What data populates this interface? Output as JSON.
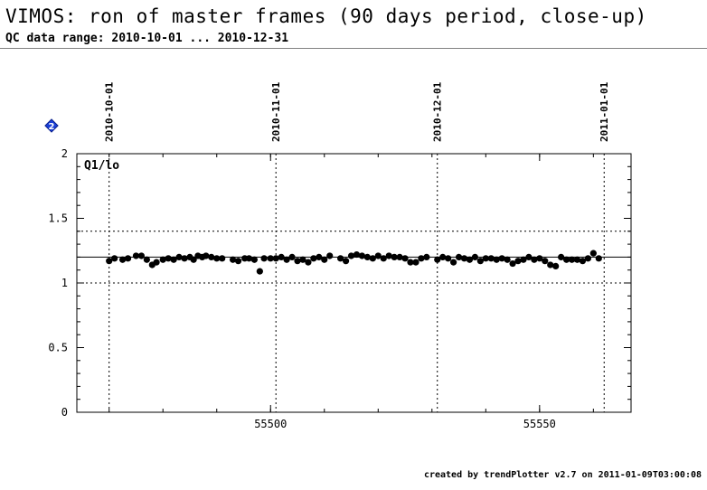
{
  "header": {
    "title": "VIMOS: ron of master frames (90 days period, close-up)",
    "subtitle": "QC data range: 2010-10-01 ... 2010-12-31"
  },
  "footer": {
    "text": "created by trendPlotter v2.7 on 2011-01-09T03:00:08"
  },
  "badge": {
    "label": "2",
    "color": "#1a3fd6"
  },
  "chart_data": {
    "type": "scatter",
    "panel_label": "Q1/lo",
    "xlim": [
      55464,
      55567
    ],
    "ylim": [
      0,
      2
    ],
    "x_ticks": [
      55500,
      55550
    ],
    "x_minor_step": 10,
    "y_ticks": [
      0,
      0.5,
      1,
      1.5,
      2
    ],
    "y_tick_labels": [
      "0",
      "0.5",
      "1",
      "1.5",
      "2"
    ],
    "y_minor_step": 0.1,
    "date_markers": [
      {
        "mjd": 55470,
        "label": "2010-10-01"
      },
      {
        "mjd": 55501,
        "label": "2010-11-01"
      },
      {
        "mjd": 55531,
        "label": "2010-12-01"
      },
      {
        "mjd": 55562,
        "label": "2011-01-01"
      }
    ],
    "reference_line": 1.2,
    "threshold_lines": [
      1.0,
      1.4
    ],
    "points": {
      "x": [
        55470,
        55471,
        55472.5,
        55473.5,
        55475,
        55476,
        55477,
        55478,
        55478.8,
        55480,
        55481,
        55482,
        55483,
        55484,
        55485,
        55485.7,
        55486.5,
        55487.3,
        55488,
        55489,
        55490,
        55491,
        55493,
        55494,
        55495.2,
        55496,
        55497,
        55498,
        55498.8,
        55500,
        55501,
        55502,
        55503,
        55504,
        55505,
        55506,
        55507,
        55508,
        55509,
        55510,
        55511,
        55513,
        55514,
        55515,
        55516,
        55517,
        55518,
        55519,
        55520,
        55521,
        55522,
        55523,
        55524,
        55525,
        55526,
        55527,
        55528,
        55529,
        55531,
        55532,
        55533,
        55534,
        55535,
        55536,
        55537,
        55538,
        55539,
        55540,
        55541,
        55542,
        55543,
        55544,
        55545,
        55546,
        55547,
        55548,
        55549,
        55550,
        55551,
        55552,
        55553,
        55554,
        55555,
        55556,
        55557,
        55558,
        55559,
        55560,
        55561
      ],
      "y": [
        1.17,
        1.19,
        1.18,
        1.19,
        1.21,
        1.21,
        1.18,
        1.14,
        1.16,
        1.18,
        1.19,
        1.18,
        1.2,
        1.19,
        1.2,
        1.18,
        1.21,
        1.2,
        1.21,
        1.2,
        1.19,
        1.19,
        1.18,
        1.17,
        1.19,
        1.19,
        1.18,
        1.09,
        1.19,
        1.19,
        1.19,
        1.2,
        1.18,
        1.2,
        1.17,
        1.18,
        1.16,
        1.19,
        1.2,
        1.18,
        1.21,
        1.19,
        1.17,
        1.21,
        1.22,
        1.21,
        1.2,
        1.19,
        1.21,
        1.19,
        1.21,
        1.2,
        1.2,
        1.19,
        1.16,
        1.16,
        1.19,
        1.2,
        1.18,
        1.2,
        1.19,
        1.16,
        1.2,
        1.19,
        1.18,
        1.2,
        1.17,
        1.19,
        1.19,
        1.18,
        1.19,
        1.18,
        1.15,
        1.17,
        1.18,
        1.2,
        1.18,
        1.19,
        1.17,
        1.14,
        1.13,
        1.2,
        1.18,
        1.18,
        1.18,
        1.17,
        1.19,
        1.23,
        1.19
      ]
    }
  }
}
